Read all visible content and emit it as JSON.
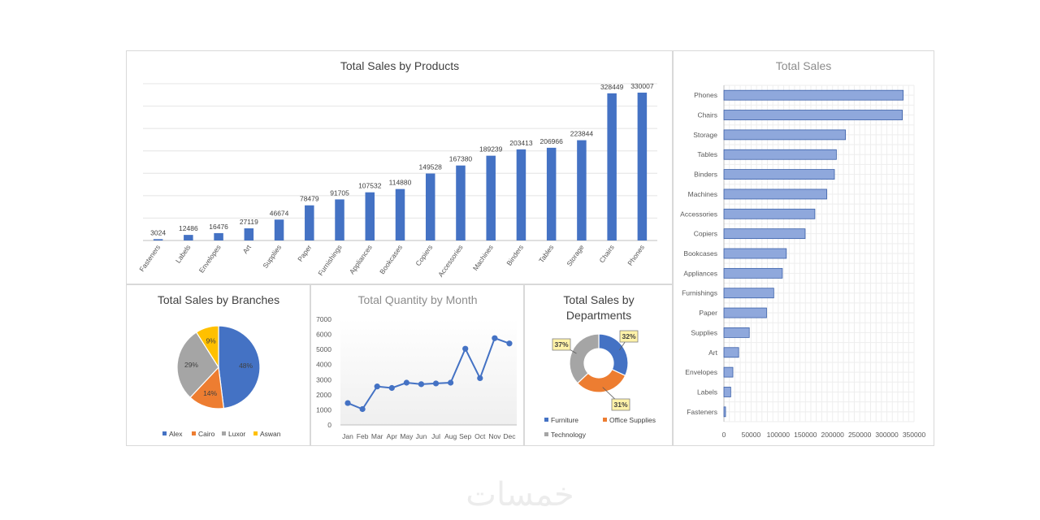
{
  "colors": {
    "blue": "#4472c4",
    "bar_light": "#8fa8dc",
    "orange": "#ed7d31",
    "gray": "#a5a5a5",
    "yellow": "#ffc000",
    "grid": "#e4e4e4",
    "callout_fill": "#fff2a8"
  },
  "watermark": "خمسات",
  "chart_data": [
    {
      "id": "products",
      "type": "bar",
      "title": "Total Sales by Products",
      "categories": [
        "Fasteners",
        "Labels",
        "Envelopes",
        "Art",
        "Supplies",
        "Paper",
        "Furnishings",
        "Appliances",
        "Bookcases",
        "Copiers",
        "Accessories",
        "Machines",
        "Binders",
        "Tables",
        "Storage",
        "Chairs",
        "Phones"
      ],
      "values": [
        3024,
        12486,
        16476,
        27119,
        46674,
        78479,
        91705,
        107532,
        114880,
        149528,
        167380,
        189239,
        203413,
        206966,
        223844,
        328449,
        330007
      ],
      "ylim": [
        0,
        350000
      ],
      "grid": true,
      "data_labels": true
    },
    {
      "id": "total",
      "type": "bar",
      "orientation": "horizontal",
      "title": "Total Sales",
      "categories": [
        "Phones",
        "Chairs",
        "Storage",
        "Tables",
        "Binders",
        "Machines",
        "Accessories",
        "Copiers",
        "Bookcases",
        "Appliances",
        "Furnishings",
        "Paper",
        "Supplies",
        "Art",
        "Envelopes",
        "Labels",
        "Fasteners"
      ],
      "values": [
        330007,
        328449,
        223844,
        206966,
        203413,
        189239,
        167380,
        149528,
        114880,
        107532,
        91705,
        78479,
        46674,
        27119,
        16476,
        12486,
        3024
      ],
      "xlim": [
        0,
        350000
      ],
      "xticks": [
        "0",
        "50000",
        "100000",
        "150000",
        "200000",
        "250000",
        "300000",
        "350000"
      ],
      "grid": true
    },
    {
      "id": "branches",
      "type": "pie",
      "title": "Total Sales by Branches",
      "labels": [
        "Alex",
        "Cairo",
        "Luxor",
        "Aswan"
      ],
      "values": [
        48,
        14,
        29,
        9
      ],
      "display": [
        "48%",
        "14%",
        "29%",
        "9%"
      ],
      "legend": "bottom"
    },
    {
      "id": "month",
      "type": "line",
      "title": "Total Quantity  by Month",
      "categories": [
        "Jan",
        "Feb",
        "Mar",
        "Apr",
        "May",
        "Jun",
        "Jul",
        "Aug",
        "Sep",
        "Oct",
        "Nov",
        "Dec"
      ],
      "values": [
        1450,
        1050,
        2550,
        2450,
        2800,
        2700,
        2750,
        2800,
        5050,
        3100,
        5750,
        5400
      ],
      "ylim": [
        0,
        7000
      ],
      "yticks": [
        "0",
        "1000",
        "2000",
        "3000",
        "4000",
        "5000",
        "6000",
        "7000"
      ],
      "grid": false
    },
    {
      "id": "dept",
      "type": "pie",
      "variant": "doughnut",
      "title_lines": [
        "Total Sales by",
        "Departments"
      ],
      "labels": [
        "Furniture",
        "Office Supplies",
        "Technology"
      ],
      "values": [
        32,
        31,
        37
      ],
      "display": [
        "32%",
        "31%",
        "37%"
      ],
      "legend": "bottom"
    }
  ]
}
